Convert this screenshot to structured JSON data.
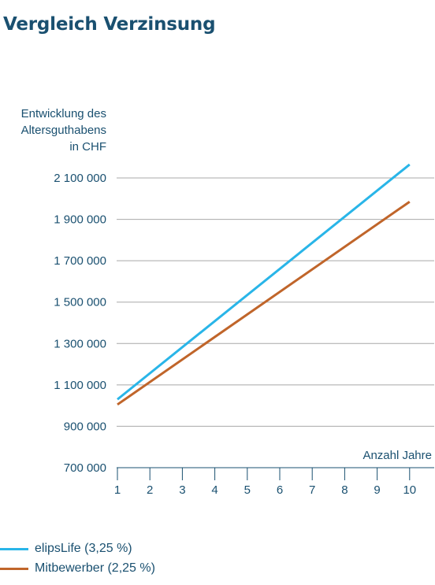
{
  "page": {
    "title": "Vergleich Verzinsung"
  },
  "chart_data": {
    "type": "line",
    "ylabel": [
      "Entwicklung des",
      "Altersguthabens",
      "in CHF"
    ],
    "xlabel": "Anzahl Jahre",
    "x": [
      1,
      10
    ],
    "xticks": [
      "1",
      "2",
      "3",
      "4",
      "5",
      "6",
      "7",
      "8",
      "9",
      "10"
    ],
    "ylim": [
      700000,
      2100000
    ],
    "yticks": [
      700000,
      900000,
      1100000,
      1300000,
      1500000,
      1700000,
      1900000,
      2100000
    ],
    "ytick_labels": [
      "700 000",
      "900 000",
      "1 100 000",
      "1 300 000",
      "1 500 000",
      "1 700 000",
      "1 900 000",
      "2 100 000"
    ],
    "grid": true,
    "legend_position": "bottom-left",
    "series": [
      {
        "name": "elipsLife (3,25 %)",
        "color": "#29b5e8",
        "values": [
          1030000,
          2165000
        ]
      },
      {
        "name": "Mitbewerber (2,25 %)",
        "color": "#c0652a",
        "values": [
          1005000,
          1985000
        ]
      }
    ]
  }
}
